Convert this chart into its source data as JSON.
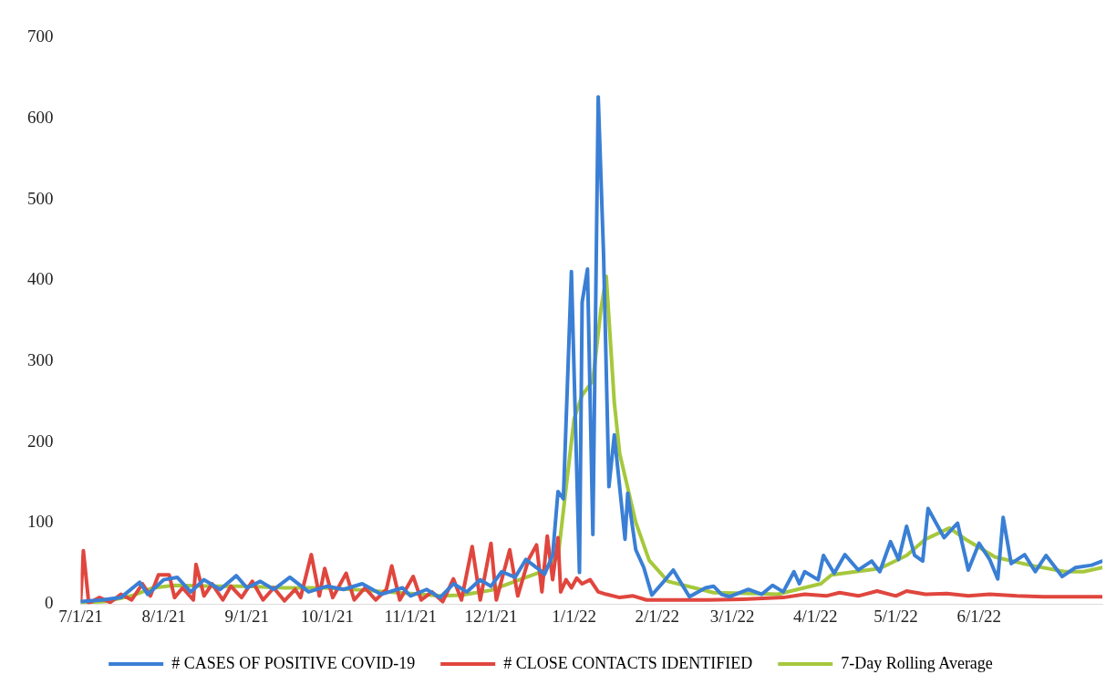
{
  "chart_data": {
    "type": "line",
    "marker": "none",
    "legend": "bottom",
    "xlim": [
      "2021-07-01",
      "2022-07-17"
    ],
    "xticks": [
      {
        "value": "2021-07-01",
        "label": "7/1/21"
      },
      {
        "value": "2021-08-01",
        "label": "8/1/21"
      },
      {
        "value": "2021-09-01",
        "label": "9/1/21"
      },
      {
        "value": "2021-10-01",
        "label": "10/1/21"
      },
      {
        "value": "2021-11-01",
        "label": "11/1/21"
      },
      {
        "value": "2021-12-01",
        "label": "12/1/21"
      },
      {
        "value": "2022-01-01",
        "label": "1/1/22"
      },
      {
        "value": "2022-02-01",
        "label": "2/1/22"
      },
      {
        "value": "2022-03-01",
        "label": "3/1/22"
      },
      {
        "value": "2022-04-01",
        "label": "4/1/22"
      },
      {
        "value": "2022-05-01",
        "label": "5/1/22"
      },
      {
        "value": "2022-06-01",
        "label": "6/1/22"
      }
    ],
    "ylim": [
      0,
      700
    ],
    "yticks": [
      0,
      100,
      200,
      300,
      400,
      500,
      600,
      700
    ],
    "series": [
      {
        "name": "# CASES OF POSITIVE COVID-19",
        "color": "#3a7fd5",
        "x": [
          "2021-07-01",
          "2021-07-09",
          "2021-07-16",
          "2021-07-23",
          "2021-07-26",
          "2021-08-01",
          "2021-08-06",
          "2021-08-11",
          "2021-08-16",
          "2021-08-22",
          "2021-08-28",
          "2021-09-01",
          "2021-09-06",
          "2021-09-11",
          "2021-09-17",
          "2021-09-24",
          "2021-10-01",
          "2021-10-07",
          "2021-10-14",
          "2021-10-21",
          "2021-10-29",
          "2021-11-01",
          "2021-11-07",
          "2021-11-12",
          "2021-11-17",
          "2021-11-22",
          "2021-11-27",
          "2021-12-01",
          "2021-12-05",
          "2021-12-10",
          "2021-12-14",
          "2021-12-18",
          "2021-12-21",
          "2021-12-24",
          "2021-12-26",
          "2021-12-28",
          "2021-12-31",
          "2022-01-03",
          "2022-01-04",
          "2022-01-06",
          "2022-01-08",
          "2022-01-10",
          "2022-01-12",
          "2022-01-14",
          "2022-01-16",
          "2022-01-20",
          "2022-01-21",
          "2022-01-24",
          "2022-01-27",
          "2022-01-30",
          "2022-02-04",
          "2022-02-07",
          "2022-02-13",
          "2022-02-19",
          "2022-02-22",
          "2022-02-25",
          "2022-02-28",
          "2022-03-07",
          "2022-03-12",
          "2022-03-16",
          "2022-03-20",
          "2022-03-24",
          "2022-03-26",
          "2022-03-28",
          "2022-04-02",
          "2022-04-04",
          "2022-04-08",
          "2022-04-12",
          "2022-04-17",
          "2022-04-22",
          "2022-04-25",
          "2022-04-29",
          "2022-05-02",
          "2022-05-05",
          "2022-05-08",
          "2022-05-11",
          "2022-05-13",
          "2022-05-16",
          "2022-05-19",
          "2022-05-24",
          "2022-05-28",
          "2022-06-01",
          "2022-06-05",
          "2022-06-08",
          "2022-06-10",
          "2022-06-13",
          "2022-06-18",
          "2022-06-22",
          "2022-06-26",
          "2022-07-02",
          "2022-07-07",
          "2022-07-13",
          "2022-07-17"
        ],
        "values": [
          3,
          5,
          8,
          27,
          12,
          30,
          33,
          15,
          30,
          18,
          35,
          20,
          28,
          18,
          33,
          15,
          22,
          18,
          25,
          12,
          20,
          10,
          18,
          8,
          25,
          15,
          30,
          22,
          40,
          33,
          55,
          45,
          37,
          60,
          139,
          130,
          411,
          39,
          373,
          414,
          86,
          627,
          431,
          145,
          209,
          80,
          137,
          67,
          45,
          11,
          30,
          42,
          9,
          20,
          22,
          12,
          9,
          18,
          12,
          23,
          15,
          40,
          25,
          40,
          30,
          60,
          38,
          61,
          42,
          53,
          40,
          77,
          55,
          96,
          60,
          53,
          118,
          100,
          82,
          100,
          42,
          75,
          55,
          31,
          107,
          50,
          61,
          40,
          60,
          34,
          45,
          48,
          53
        ]
      },
      {
        "name": "# CLOSE CONTACTS IDENTIFIED",
        "color": "#e0463e",
        "x": [
          "2021-07-01",
          "2021-07-02",
          "2021-07-04",
          "2021-07-08",
          "2021-07-12",
          "2021-07-16",
          "2021-07-20",
          "2021-07-24",
          "2021-07-27",
          "2021-07-30",
          "2021-08-03",
          "2021-08-05",
          "2021-08-08",
          "2021-08-12",
          "2021-08-13",
          "2021-08-16",
          "2021-08-19",
          "2021-08-23",
          "2021-08-26",
          "2021-08-30",
          "2021-09-03",
          "2021-09-07",
          "2021-09-11",
          "2021-09-15",
          "2021-09-19",
          "2021-09-21",
          "2021-09-25",
          "2021-09-28",
          "2021-09-30",
          "2021-10-03",
          "2021-10-08",
          "2021-10-11",
          "2021-10-15",
          "2021-10-19",
          "2021-10-23",
          "2021-10-25",
          "2021-10-28",
          "2021-11-02",
          "2021-11-05",
          "2021-11-09",
          "2021-11-13",
          "2021-11-17",
          "2021-11-20",
          "2021-11-24",
          "2021-11-27",
          "2021-12-01",
          "2021-12-03",
          "2021-12-08",
          "2021-12-11",
          "2021-12-15",
          "2021-12-18",
          "2021-12-20",
          "2021-12-22",
          "2021-12-24",
          "2021-12-26",
          "2021-12-27",
          "2021-12-29",
          "2021-12-31",
          "2022-01-02",
          "2022-01-04",
          "2022-01-07",
          "2022-01-10",
          "2022-01-13",
          "2022-01-18",
          "2022-01-23",
          "2022-01-28",
          "2022-02-05",
          "2022-02-20",
          "2022-03-05",
          "2022-03-20",
          "2022-03-28",
          "2022-04-05",
          "2022-04-10",
          "2022-04-17",
          "2022-04-24",
          "2022-05-01",
          "2022-05-05",
          "2022-05-12",
          "2022-05-20",
          "2022-05-28",
          "2022-06-05",
          "2022-06-15",
          "2022-06-25",
          "2022-07-05",
          "2022-07-17"
        ],
        "values": [
          5,
          66,
          1,
          8,
          2,
          12,
          5,
          25,
          10,
          36,
          36,
          8,
          20,
          5,
          49,
          10,
          25,
          5,
          22,
          8,
          28,
          5,
          20,
          4,
          18,
          8,
          61,
          10,
          44,
          8,
          38,
          5,
          20,
          5,
          18,
          47,
          5,
          34,
          5,
          15,
          3,
          31,
          5,
          71,
          5,
          75,
          5,
          67,
          10,
          55,
          73,
          15,
          84,
          30,
          82,
          15,
          30,
          20,
          32,
          25,
          30,
          15,
          12,
          8,
          10,
          5,
          5,
          5,
          6,
          8,
          12,
          10,
          14,
          10,
          16,
          10,
          16,
          12,
          13,
          10,
          12,
          10,
          9,
          9,
          9
        ]
      },
      {
        "name": "7-Day Rolling Average",
        "color": "#a6c83c",
        "x": [
          "2021-07-01",
          "2021-07-10",
          "2021-07-20",
          "2021-07-28",
          "2021-08-05",
          "2021-08-20",
          "2021-09-01",
          "2021-09-15",
          "2021-09-30",
          "2021-10-15",
          "2021-11-01",
          "2021-11-12",
          "2021-11-20",
          "2021-12-01",
          "2021-12-10",
          "2021-12-20",
          "2021-12-26",
          "2022-01-01",
          "2022-01-04",
          "2022-01-08",
          "2022-01-11",
          "2022-01-13",
          "2022-01-16",
          "2022-01-18",
          "2022-01-24",
          "2022-01-29",
          "2022-02-05",
          "2022-02-22",
          "2022-03-10",
          "2022-03-18",
          "2022-04-03",
          "2022-04-07",
          "2022-04-25",
          "2022-05-05",
          "2022-05-12",
          "2022-05-21",
          "2022-05-27",
          "2022-06-07",
          "2022-06-20",
          "2022-07-03",
          "2022-07-10",
          "2022-07-17"
        ],
        "values": [
          2,
          3,
          10,
          20,
          23,
          22,
          22,
          20,
          20,
          17,
          13,
          10,
          11,
          17,
          28,
          40,
          58,
          229,
          258,
          276,
          364,
          405,
          249,
          186,
          101,
          54,
          28,
          14,
          13,
          12,
          25,
          36,
          44,
          60,
          80,
          94,
          80,
          58,
          48,
          40,
          40,
          45
        ]
      }
    ]
  }
}
